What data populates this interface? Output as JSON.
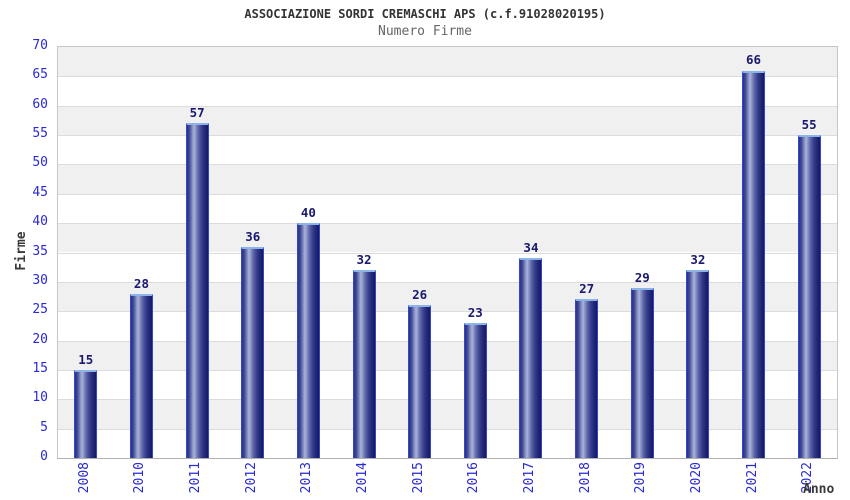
{
  "chart_data": {
    "type": "bar",
    "title": "ASSOCIAZIONE SORDI CREMASCHI APS (c.f.91028020195)",
    "subtitle": "Numero Firme",
    "xlabel": "Anno",
    "ylabel": "Firme",
    "categories": [
      "2008",
      "2010",
      "2011",
      "2012",
      "2013",
      "2014",
      "2015",
      "2016",
      "2017",
      "2018",
      "2019",
      "2020",
      "2021",
      "2022"
    ],
    "values": [
      15,
      28,
      57,
      36,
      40,
      32,
      26,
      23,
      34,
      27,
      29,
      32,
      66,
      55
    ],
    "ylim": [
      0,
      70
    ],
    "ytick_step": 5,
    "yticks": [
      0,
      5,
      10,
      15,
      20,
      25,
      30,
      35,
      40,
      45,
      50,
      55,
      60,
      65,
      70
    ],
    "grid": "horizontal gridlines every 5 units, alternating white/grey 5-unit bands",
    "legend": null,
    "bar_value_labels_shown": true
  },
  "colors": {
    "tick_label_blue": "#2a2ad2",
    "value_label_navy": "#191970",
    "bar_dark_navy": "#141a5e",
    "bar_mid_navy": "#2a3282",
    "bar_highlight": "#aab3dc",
    "bar_border_top": "#8cb4e8",
    "bar_border_side": "#3246cf",
    "band_grey": "#f0f0f0",
    "gridline_grey": "#dcdcdc",
    "plot_border_grey": "#c6c6c6",
    "title_grey": "#333333",
    "subtitle_grey": "#666666",
    "axis_title_grey": "#3a3a3a",
    "background": "#ffffff"
  }
}
